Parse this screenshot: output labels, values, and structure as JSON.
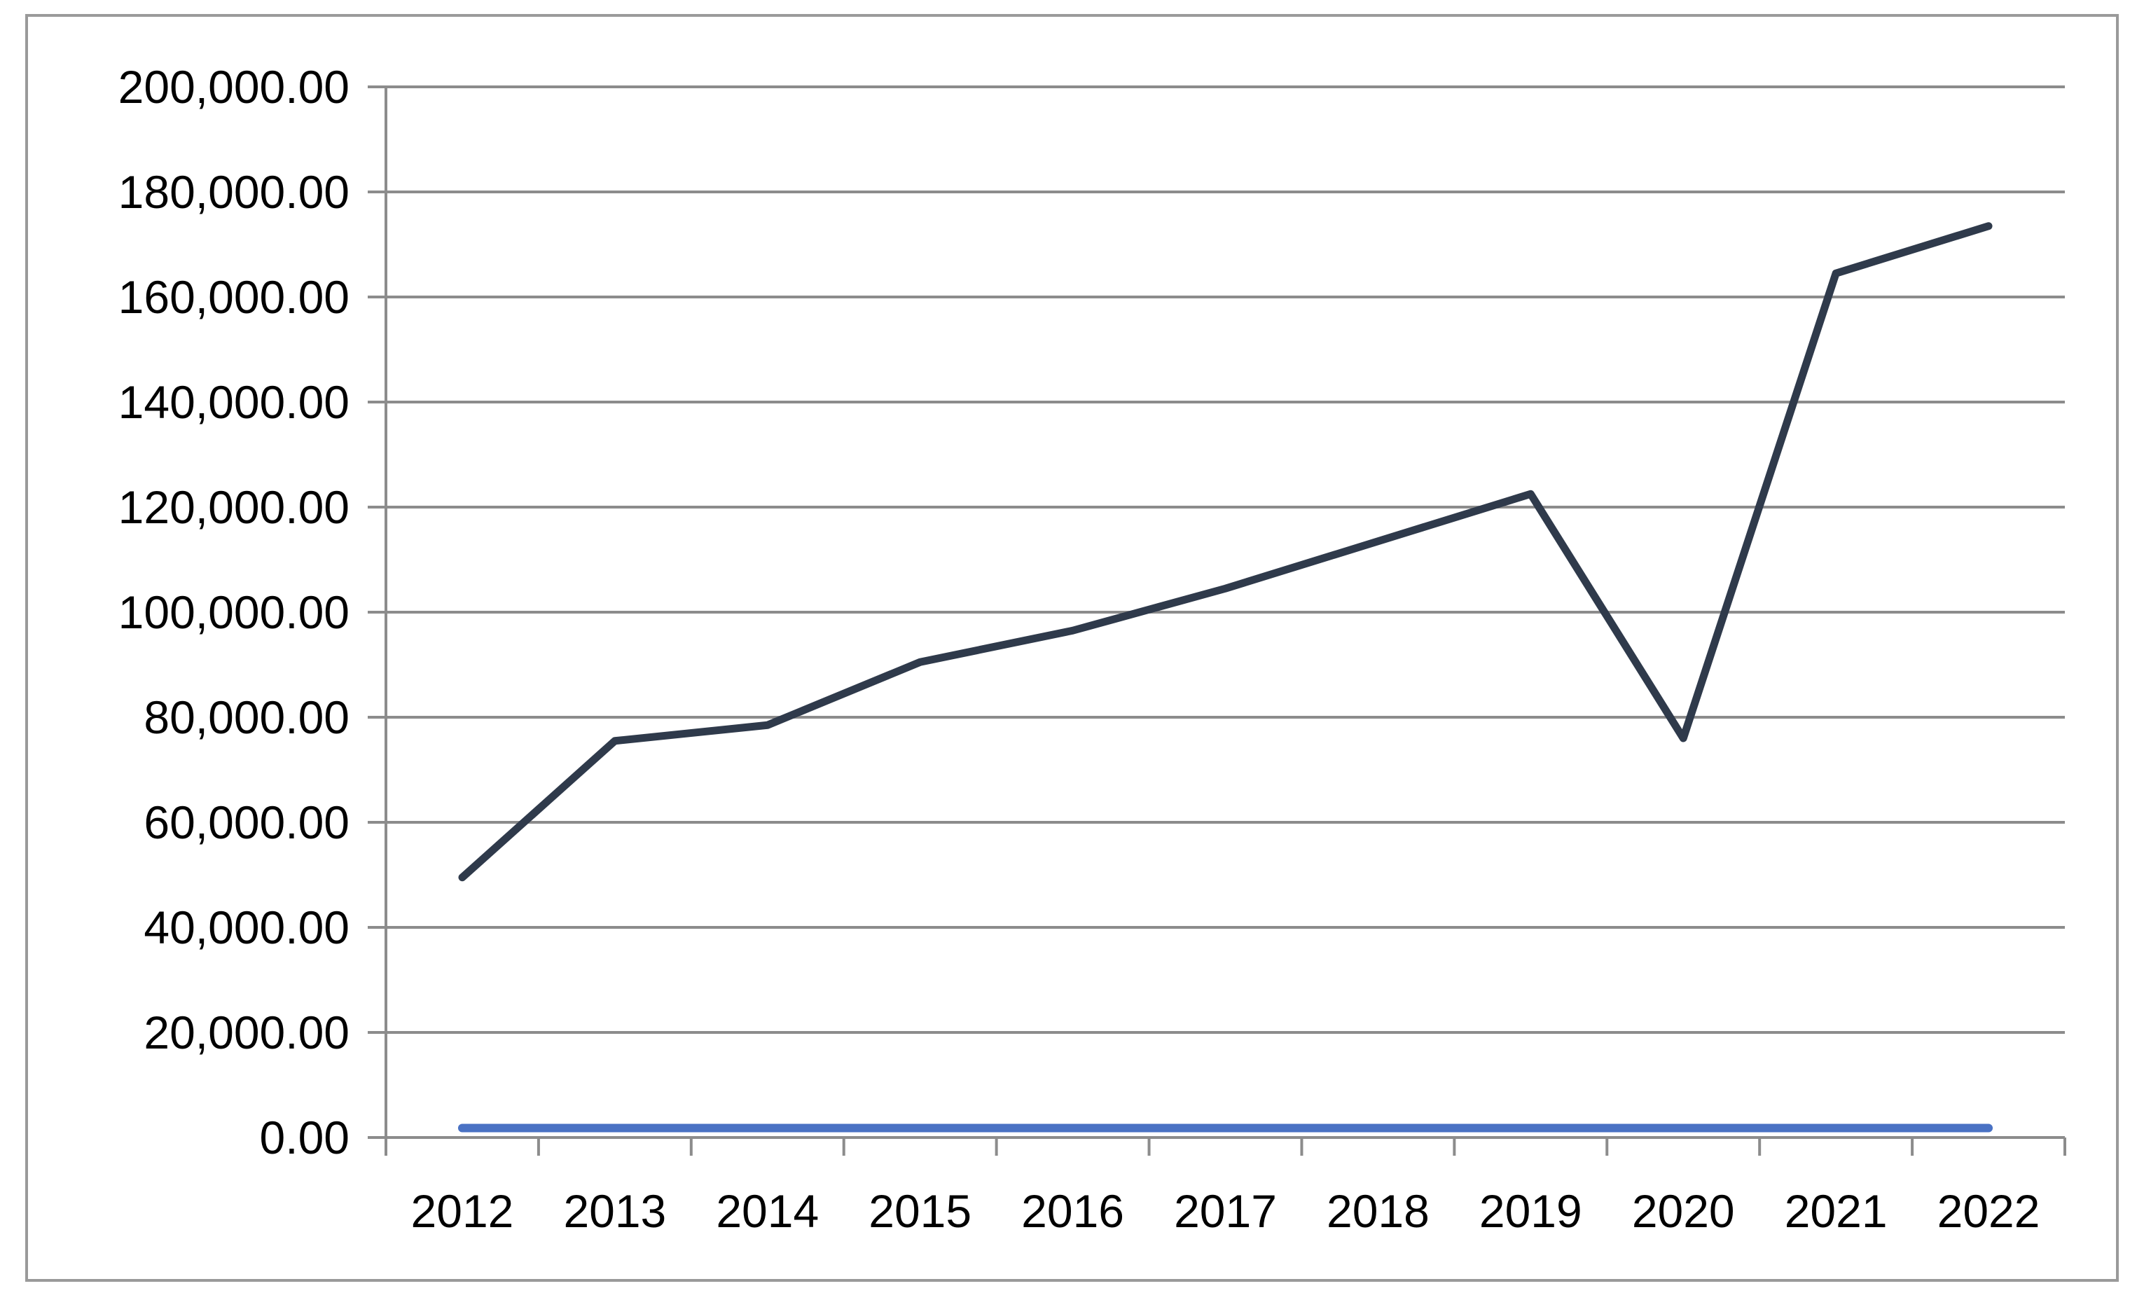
{
  "chart_data": {
    "type": "line",
    "x": [
      "2012",
      "2013",
      "2014",
      "2015",
      "2016",
      "2017",
      "2018",
      "2019",
      "2020",
      "2021",
      "2022"
    ],
    "series": [
      {
        "color": "#2f3a4b",
        "values": [
          49500,
          75500,
          78500,
          90500,
          96500,
          104500,
          113500,
          122500,
          76000,
          164500,
          173500
        ]
      },
      {
        "color": "#4a72c4",
        "values": [
          1800,
          1800,
          1800,
          1800,
          1800,
          1800,
          1800,
          1800,
          1800,
          1800,
          1800
        ]
      }
    ],
    "ylim": [
      0,
      200000
    ],
    "yticks": [
      0,
      20000,
      40000,
      60000,
      80000,
      100000,
      120000,
      140000,
      160000,
      180000,
      200000
    ],
    "ytick_labels": [
      "0.00",
      "20,000.00",
      "40,000.00",
      "60,000.00",
      "80,000.00",
      "100,000.00",
      "120,000.00",
      "140,000.00",
      "160,000.00",
      "180,000.00",
      "200,000.00"
    ],
    "grid": true,
    "legend": "none",
    "colors": {
      "grid": "#8c8c8c",
      "axis": "#8c8c8c",
      "frame": "#9a9a9a"
    }
  }
}
